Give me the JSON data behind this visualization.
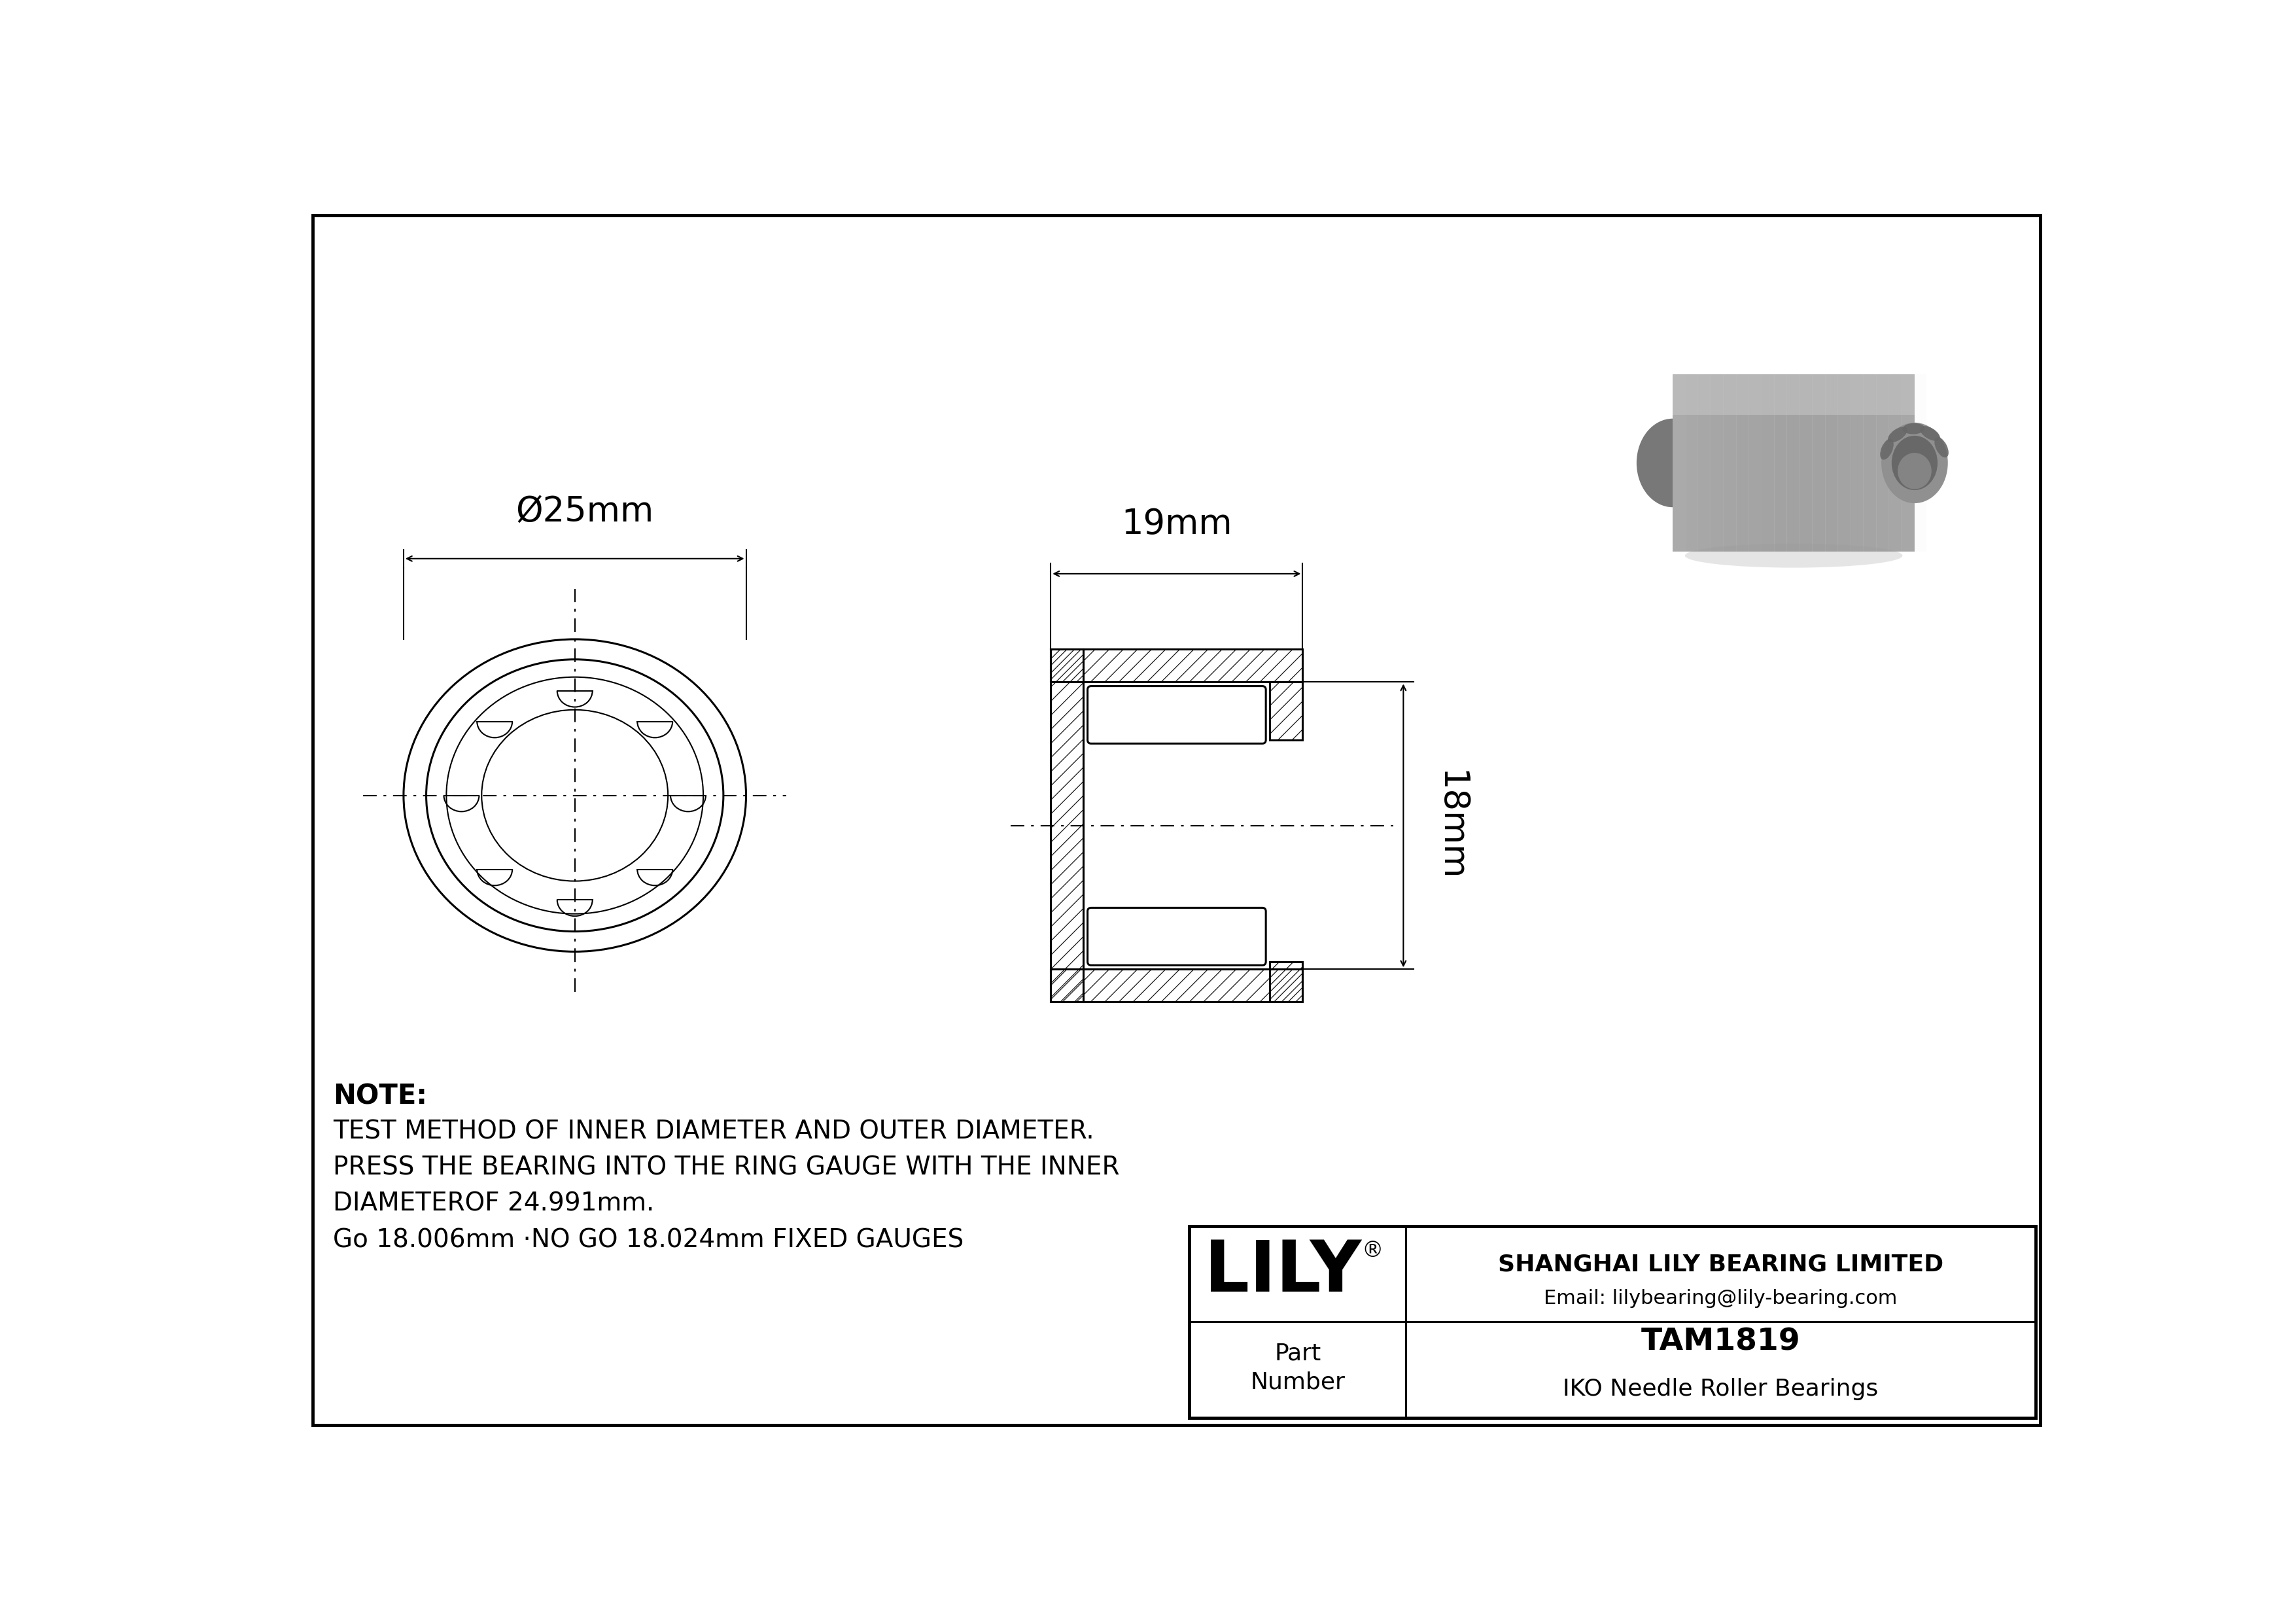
{
  "bg_color": "#ffffff",
  "line_color": "#000000",
  "gray_3d": "#aaaaaa",
  "gray_3d_dark": "#888888",
  "gray_3d_mid": "#999999",
  "gray_3d_light": "#c0c0c0",
  "outer_diameter_label": "Ø25mm",
  "inner_diameter_label": "18mm",
  "width_label": "19mm",
  "note_line1": "NOTE:",
  "note_line2": "TEST METHOD OF INNER DIAMETER AND OUTER DIAMETER.",
  "note_line3": "PRESS THE BEARING INTO THE RING GAUGE WITH THE INNER",
  "note_line4": "DIAMETEROF 24.991mm.",
  "note_line5": "Go 18.006mm ·NO GO 18.024mm FIXED GAUGES",
  "company_name": "SHANGHAI LILY BEARING LIMITED",
  "company_email": "Email: lilybearing@lily-bearing.com",
  "lily_logo": "LILY",
  "registered": "®",
  "part_label": "Part\nNumber",
  "part_number": "TAM1819",
  "part_type": "IKO Needle Roller Bearings",
  "fig_width": 35.1,
  "fig_height": 24.82
}
